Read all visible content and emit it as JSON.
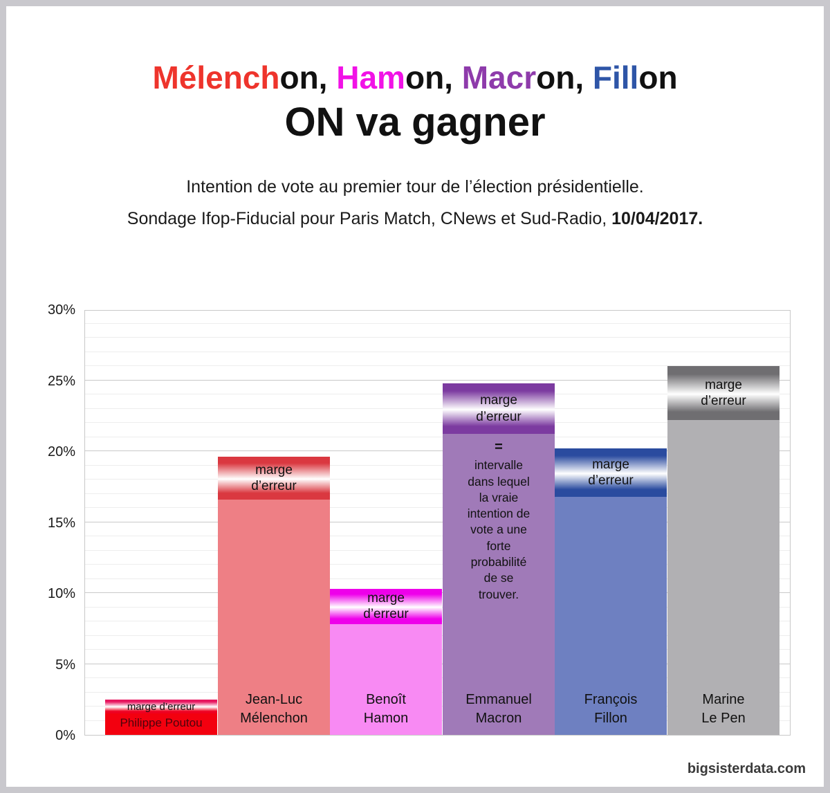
{
  "frame": {
    "border_color": "#c9c8cd",
    "card_background": "#ffffff"
  },
  "header": {
    "title_segments": [
      {
        "text": "Mélench",
        "color": "#ee342c"
      },
      {
        "text": "on, ",
        "color": "#111111"
      },
      {
        "text": "Ham",
        "color": "#f112e6"
      },
      {
        "text": "on, ",
        "color": "#111111"
      },
      {
        "text": "Macr",
        "color": "#8e3bab"
      },
      {
        "text": "on, ",
        "color": "#111111"
      },
      {
        "text": "Fill",
        "color": "#2e55a7"
      },
      {
        "text": "on",
        "color": "#111111"
      }
    ],
    "title_main": "ON va gagner",
    "subtitle1": "Intention de vote au premier tour de l’élection présidentielle.",
    "subtitle2_text": "Sondage Ifop-Fiducial pour Paris Match, CNews et Sud-Radio, ",
    "subtitle2_date": "10/04/2017."
  },
  "chart_data": {
    "type": "bar",
    "title": "Intention de vote au premier tour de l’élection présidentielle",
    "unit": "%",
    "ylim": [
      0,
      30
    ],
    "y_ticks_pct": [
      0,
      5,
      10,
      15,
      20,
      25,
      30
    ],
    "minor_grid_step_pct": 1,
    "grid": true,
    "error_band_label_lines": [
      "marge",
      "d’erreur"
    ],
    "error_band_label_single": "marge d’erreur",
    "annotation_equals": "=",
    "annotation_text": "intervalle dans lequel la vraie intention de vote a une forte probabilité de se trouver.",
    "candidates": [
      {
        "name_lines": [
          "Philippe Poutou"
        ],
        "estimate_pct": 2,
        "low_pct": 1.5,
        "high_pct": 2.5,
        "body_color": "#f3000f",
        "band_edge_top": "#e7145e",
        "band_edge_bottom": "#ee0020",
        "name_color": "#4d040c",
        "compact": true
      },
      {
        "name_lines": [
          "Jean-Luc",
          "Mélenchon"
        ],
        "estimate_pct": 18,
        "low_pct": 16.6,
        "high_pct": 19.6,
        "body_color": "#ee7f85",
        "band_edge_top": "#da3840",
        "band_edge_bottom": "#da3840",
        "name_color": "#111111"
      },
      {
        "name_lines": [
          "Benoît",
          "Hamon"
        ],
        "estimate_pct": 9,
        "low_pct": 7.8,
        "high_pct": 10.3,
        "body_color": "#f88af3",
        "band_edge_top": "#ee00ea",
        "band_edge_bottom": "#ee00ea",
        "name_color": "#111111"
      },
      {
        "name_lines": [
          "Emmanuel",
          "Macron"
        ],
        "estimate_pct": 23,
        "low_pct": 21.2,
        "high_pct": 24.8,
        "body_color": "#a07ab8",
        "band_edge_top": "#7c3ba0",
        "band_edge_bottom": "#7c3ba0",
        "name_color": "#111111",
        "has_annotation": true
      },
      {
        "name_lines": [
          "François",
          "Fillon"
        ],
        "estimate_pct": 18.5,
        "low_pct": 16.8,
        "high_pct": 20.2,
        "body_color": "#6e80c1",
        "band_edge_top": "#2a4b9f",
        "band_edge_bottom": "#2a4b9f",
        "name_color": "#111111"
      },
      {
        "name_lines": [
          "Marine",
          "Le Pen"
        ],
        "estimate_pct": 24,
        "low_pct": 22.2,
        "high_pct": 26.0,
        "body_color": "#b1b0b3",
        "band_edge_top": "#6f6e71",
        "band_edge_bottom": "#6f6e71",
        "name_color": "#111111"
      }
    ]
  },
  "footer": {
    "credit": "bigsisterdata.com"
  }
}
